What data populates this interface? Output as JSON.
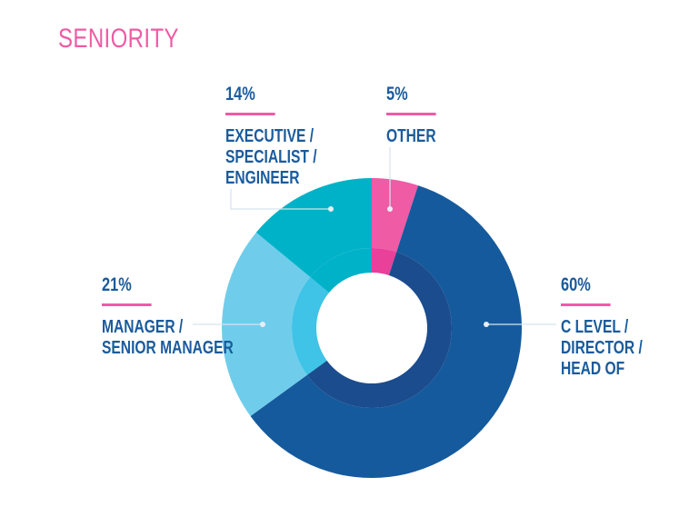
{
  "title": "SENIORITY",
  "chart_data": {
    "type": "pie",
    "donut": true,
    "categories": [
      "OTHER",
      "C LEVEL / DIRECTOR / HEAD OF",
      "MANAGER / SENIOR MANAGER",
      "EXECUTIVE / SPECIALIST / ENGINEER"
    ],
    "values": [
      5,
      60,
      21,
      14
    ],
    "labels": [
      "5%",
      "60%",
      "21%",
      "14%"
    ],
    "colors": [
      "#ef5ba4",
      "#155a9c",
      "#6fcdeb",
      "#00b2c8"
    ],
    "inner_colors": [
      "#e9409a",
      "#1b4c8e",
      "#3fc3e6",
      "#00b2c8"
    ],
    "accent": "#ee5ba5"
  }
}
